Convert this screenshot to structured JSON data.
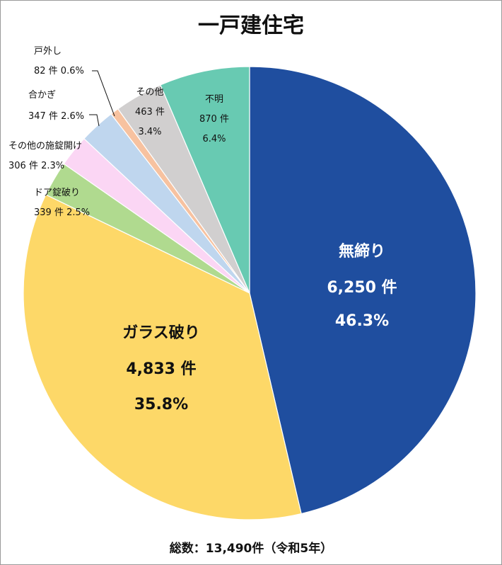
{
  "chart_data": {
    "type": "pie",
    "title": "一戸建住宅",
    "total_label": "総数：13,490件（令和5年）",
    "series": [
      {
        "category": "無締り",
        "count": 6250,
        "count_label": "6,250 件",
        "percent": 46.3,
        "percent_label": "46.3%",
        "color": "#1f4e9f"
      },
      {
        "category": "ガラス破り",
        "count": 4833,
        "count_label": "4,833 件",
        "percent": 35.8,
        "percent_label": "35.8%",
        "color": "#fdd868"
      },
      {
        "category": "ドア錠破り",
        "count": 339,
        "count_label": "339 件",
        "percent": 2.5,
        "percent_label": "2.5%",
        "color": "#b0da8f"
      },
      {
        "category": "その他の施錠開け",
        "count": 306,
        "count_label": "306 件",
        "percent": 2.3,
        "percent_label": "2.3%",
        "color": "#fbd6f4"
      },
      {
        "category": "合かぎ",
        "count": 347,
        "count_label": "347 件",
        "percent": 2.6,
        "percent_label": "2.6%",
        "color": "#bfd6ee"
      },
      {
        "category": "戸外し",
        "count": 82,
        "count_label": "82 件",
        "percent": 0.6,
        "percent_label": "0.6%",
        "color": "#f7c2a0"
      },
      {
        "category": "その他",
        "count": 463,
        "count_label": "463 件",
        "percent": 3.4,
        "percent_label": "3.4%",
        "color": "#d1cfcf"
      },
      {
        "category": "不明",
        "count": 870,
        "count_label": "870 件",
        "percent": 6.4,
        "percent_label": "6.4%",
        "color": "#68cab2"
      }
    ]
  }
}
